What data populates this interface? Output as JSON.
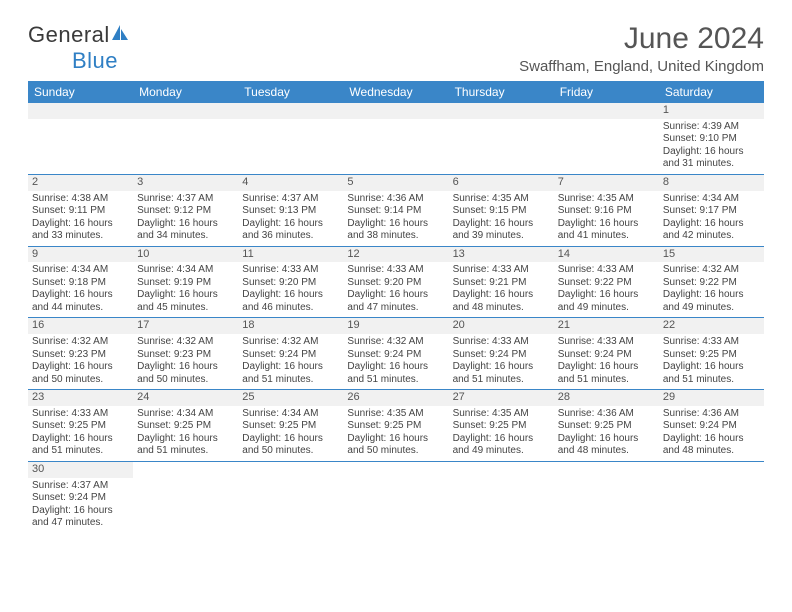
{
  "brand": {
    "name1": "General",
    "name2": "Blue"
  },
  "title": "June 2024",
  "location": "Swaffham, England, United Kingdom",
  "colors": {
    "header_bg": "#3a86c8",
    "header_text": "#ffffff",
    "daynum_bg": "#f1f1f1",
    "cell_text": "#444444",
    "rule": "#3a86c8",
    "title_text": "#555555"
  },
  "day_headers": [
    "Sunday",
    "Monday",
    "Tuesday",
    "Wednesday",
    "Thursday",
    "Friday",
    "Saturday"
  ],
  "weeks": [
    [
      null,
      null,
      null,
      null,
      null,
      null,
      {
        "d": "1",
        "sr": "4:39 AM",
        "ss": "9:10 PM",
        "dl": "16 hours and 31 minutes."
      }
    ],
    [
      {
        "d": "2",
        "sr": "4:38 AM",
        "ss": "9:11 PM",
        "dl": "16 hours and 33 minutes."
      },
      {
        "d": "3",
        "sr": "4:37 AM",
        "ss": "9:12 PM",
        "dl": "16 hours and 34 minutes."
      },
      {
        "d": "4",
        "sr": "4:37 AM",
        "ss": "9:13 PM",
        "dl": "16 hours and 36 minutes."
      },
      {
        "d": "5",
        "sr": "4:36 AM",
        "ss": "9:14 PM",
        "dl": "16 hours and 38 minutes."
      },
      {
        "d": "6",
        "sr": "4:35 AM",
        "ss": "9:15 PM",
        "dl": "16 hours and 39 minutes."
      },
      {
        "d": "7",
        "sr": "4:35 AM",
        "ss": "9:16 PM",
        "dl": "16 hours and 41 minutes."
      },
      {
        "d": "8",
        "sr": "4:34 AM",
        "ss": "9:17 PM",
        "dl": "16 hours and 42 minutes."
      }
    ],
    [
      {
        "d": "9",
        "sr": "4:34 AM",
        "ss": "9:18 PM",
        "dl": "16 hours and 44 minutes."
      },
      {
        "d": "10",
        "sr": "4:34 AM",
        "ss": "9:19 PM",
        "dl": "16 hours and 45 minutes."
      },
      {
        "d": "11",
        "sr": "4:33 AM",
        "ss": "9:20 PM",
        "dl": "16 hours and 46 minutes."
      },
      {
        "d": "12",
        "sr": "4:33 AM",
        "ss": "9:20 PM",
        "dl": "16 hours and 47 minutes."
      },
      {
        "d": "13",
        "sr": "4:33 AM",
        "ss": "9:21 PM",
        "dl": "16 hours and 48 minutes."
      },
      {
        "d": "14",
        "sr": "4:33 AM",
        "ss": "9:22 PM",
        "dl": "16 hours and 49 minutes."
      },
      {
        "d": "15",
        "sr": "4:32 AM",
        "ss": "9:22 PM",
        "dl": "16 hours and 49 minutes."
      }
    ],
    [
      {
        "d": "16",
        "sr": "4:32 AM",
        "ss": "9:23 PM",
        "dl": "16 hours and 50 minutes."
      },
      {
        "d": "17",
        "sr": "4:32 AM",
        "ss": "9:23 PM",
        "dl": "16 hours and 50 minutes."
      },
      {
        "d": "18",
        "sr": "4:32 AM",
        "ss": "9:24 PM",
        "dl": "16 hours and 51 minutes."
      },
      {
        "d": "19",
        "sr": "4:32 AM",
        "ss": "9:24 PM",
        "dl": "16 hours and 51 minutes."
      },
      {
        "d": "20",
        "sr": "4:33 AM",
        "ss": "9:24 PM",
        "dl": "16 hours and 51 minutes."
      },
      {
        "d": "21",
        "sr": "4:33 AM",
        "ss": "9:24 PM",
        "dl": "16 hours and 51 minutes."
      },
      {
        "d": "22",
        "sr": "4:33 AM",
        "ss": "9:25 PM",
        "dl": "16 hours and 51 minutes."
      }
    ],
    [
      {
        "d": "23",
        "sr": "4:33 AM",
        "ss": "9:25 PM",
        "dl": "16 hours and 51 minutes."
      },
      {
        "d": "24",
        "sr": "4:34 AM",
        "ss": "9:25 PM",
        "dl": "16 hours and 51 minutes."
      },
      {
        "d": "25",
        "sr": "4:34 AM",
        "ss": "9:25 PM",
        "dl": "16 hours and 50 minutes."
      },
      {
        "d": "26",
        "sr": "4:35 AM",
        "ss": "9:25 PM",
        "dl": "16 hours and 50 minutes."
      },
      {
        "d": "27",
        "sr": "4:35 AM",
        "ss": "9:25 PM",
        "dl": "16 hours and 49 minutes."
      },
      {
        "d": "28",
        "sr": "4:36 AM",
        "ss": "9:25 PM",
        "dl": "16 hours and 48 minutes."
      },
      {
        "d": "29",
        "sr": "4:36 AM",
        "ss": "9:24 PM",
        "dl": "16 hours and 48 minutes."
      }
    ],
    [
      {
        "d": "30",
        "sr": "4:37 AM",
        "ss": "9:24 PM",
        "dl": "16 hours and 47 minutes."
      },
      null,
      null,
      null,
      null,
      null,
      null
    ]
  ],
  "labels": {
    "sunrise": "Sunrise: ",
    "sunset": "Sunset: ",
    "daylight": "Daylight: "
  }
}
